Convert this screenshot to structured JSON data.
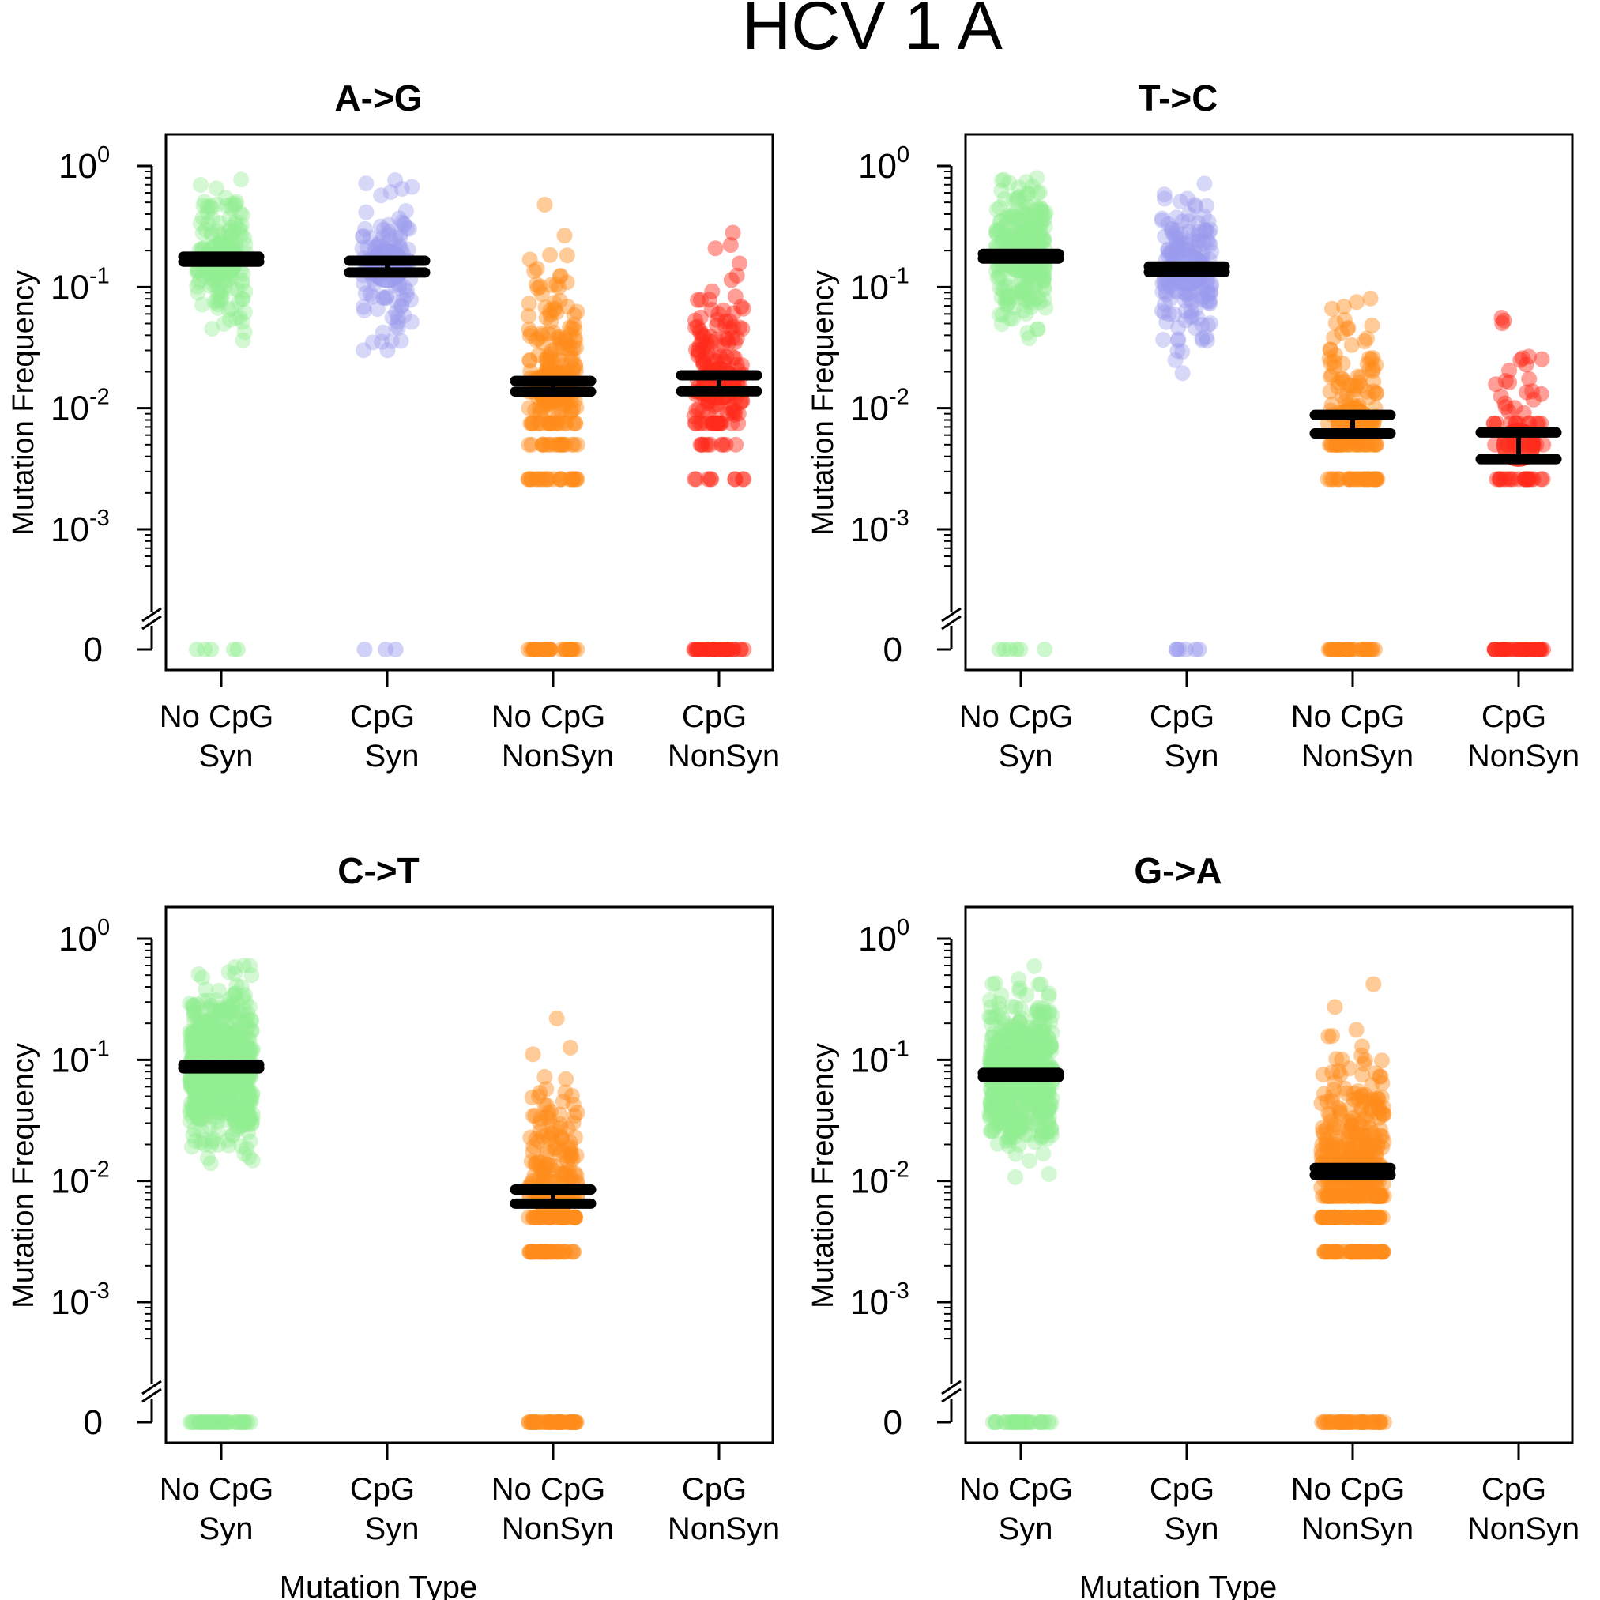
{
  "figure": {
    "title": "HCV 1 A"
  },
  "chart_data": [
    {
      "type": "scatter",
      "title": "A->G",
      "ylabel": "Mutation Frequency",
      "xlabel": "",
      "yscale": "log",
      "ylim": [
        0.0004,
        1
      ],
      "yticks": [
        {
          "base": "10",
          "exp": "0"
        },
        {
          "base": "10",
          "exp": "-1"
        },
        {
          "base": "10",
          "exp": "-2"
        },
        {
          "base": "10",
          "exp": "-3"
        },
        {
          "base": "0",
          "exp": ""
        }
      ],
      "categories": [
        {
          "line1": "No CpG",
          "line2": "Syn"
        },
        {
          "line1": "CpG",
          "line2": "Syn"
        },
        {
          "line1": "No CpG",
          "line2": "NonSyn"
        },
        {
          "line1": "CpG",
          "line2": "NonSyn"
        }
      ],
      "series": [
        {
          "color": "#90ee90",
          "mean": 0.17,
          "ci": [
            0.162,
            0.178
          ],
          "n": 150,
          "zeros": 5,
          "jitter": 0.3
        },
        {
          "color": "#9a9aee",
          "mean": 0.15,
          "ci": [
            0.132,
            0.165
          ],
          "n": 120,
          "zeros": 3,
          "jitter": 0.3
        },
        {
          "color": "#ff8c1a",
          "mean": 0.015,
          "ci": [
            0.0137,
            0.0168
          ],
          "n": 230,
          "zeros": 40,
          "jitter": 0.3
        },
        {
          "color": "#ff2a1a",
          "mean": 0.016,
          "ci": [
            0.0138,
            0.0187
          ],
          "n": 170,
          "zeros": 40,
          "jitter": 0.3
        }
      ],
      "grid": false
    },
    {
      "type": "scatter",
      "title": "T->C",
      "ylabel": "Mutation Frequency",
      "xlabel": "",
      "yscale": "log",
      "ylim": [
        0.0004,
        1
      ],
      "yticks": [
        {
          "base": "10",
          "exp": "0"
        },
        {
          "base": "10",
          "exp": "-1"
        },
        {
          "base": "10",
          "exp": "-2"
        },
        {
          "base": "10",
          "exp": "-3"
        },
        {
          "base": "0",
          "exp": ""
        }
      ],
      "categories": [
        {
          "line1": "No CpG",
          "line2": "Syn"
        },
        {
          "line1": "CpG",
          "line2": "Syn"
        },
        {
          "line1": "No CpG",
          "line2": "NonSyn"
        },
        {
          "line1": "CpG",
          "line2": "NonSyn"
        }
      ],
      "series": [
        {
          "color": "#90ee90",
          "mean": 0.18,
          "ci": [
            0.172,
            0.188
          ],
          "n": 240,
          "zeros": 6,
          "jitter": 0.3
        },
        {
          "color": "#9a9aee",
          "mean": 0.14,
          "ci": [
            0.133,
            0.148
          ],
          "n": 170,
          "zeros": 6,
          "jitter": 0.3
        },
        {
          "color": "#ff8c1a",
          "mean": 0.0075,
          "ci": [
            0.0062,
            0.0088
          ],
          "n": 150,
          "zeros": 40,
          "jitter": 0.3
        },
        {
          "color": "#ff2a1a",
          "mean": 0.005,
          "ci": [
            0.0038,
            0.0063
          ],
          "n": 70,
          "zeros": 40,
          "jitter": 0.3
        }
      ],
      "grid": false
    },
    {
      "type": "scatter",
      "title": "C->T",
      "ylabel": "Mutation Frequency",
      "xlabel": "Mutation Type",
      "yscale": "log",
      "ylim": [
        0.0004,
        1
      ],
      "yticks": [
        {
          "base": "10",
          "exp": "0"
        },
        {
          "base": "10",
          "exp": "-1"
        },
        {
          "base": "10",
          "exp": "-2"
        },
        {
          "base": "10",
          "exp": "-3"
        },
        {
          "base": "0",
          "exp": ""
        }
      ],
      "categories": [
        {
          "line1": "No CpG",
          "line2": "Syn"
        },
        {
          "line1": "CpG",
          "line2": "Syn"
        },
        {
          "line1": "No CpG",
          "line2": "NonSyn"
        },
        {
          "line1": "CpG",
          "line2": "NonSyn"
        }
      ],
      "series": [
        {
          "color": "#90ee90",
          "mean": 0.088,
          "ci": [
            0.085,
            0.091
          ],
          "n": 650,
          "zeros": 30,
          "jitter": 0.38
        },
        null,
        {
          "color": "#ff8c1a",
          "mean": 0.0075,
          "ci": [
            0.0065,
            0.0085
          ],
          "n": 200,
          "zeros": 40,
          "jitter": 0.3
        },
        null
      ],
      "grid": false
    },
    {
      "type": "scatter",
      "title": "G->A",
      "ylabel": "Mutation Frequency",
      "xlabel": "Mutation Type",
      "yscale": "log",
      "ylim": [
        0.0004,
        1
      ],
      "yticks": [
        {
          "base": "10",
          "exp": "0"
        },
        {
          "base": "10",
          "exp": "-1"
        },
        {
          "base": "10",
          "exp": "-2"
        },
        {
          "base": "10",
          "exp": "-3"
        },
        {
          "base": "0",
          "exp": ""
        }
      ],
      "categories": [
        {
          "line1": "No CpG",
          "line2": "Syn"
        },
        {
          "line1": "CpG",
          "line2": "Syn"
        },
        {
          "line1": "No CpG",
          "line2": "NonSyn"
        },
        {
          "line1": "CpG",
          "line2": "NonSyn"
        }
      ],
      "series": [
        {
          "color": "#90ee90",
          "mean": 0.075,
          "ci": [
            0.072,
            0.078
          ],
          "n": 550,
          "zeros": 25,
          "jitter": 0.38
        },
        null,
        {
          "color": "#ff8c1a",
          "mean": 0.012,
          "ci": [
            0.0112,
            0.0128
          ],
          "n": 380,
          "zeros": 40,
          "jitter": 0.38
        },
        null
      ],
      "grid": false
    }
  ]
}
